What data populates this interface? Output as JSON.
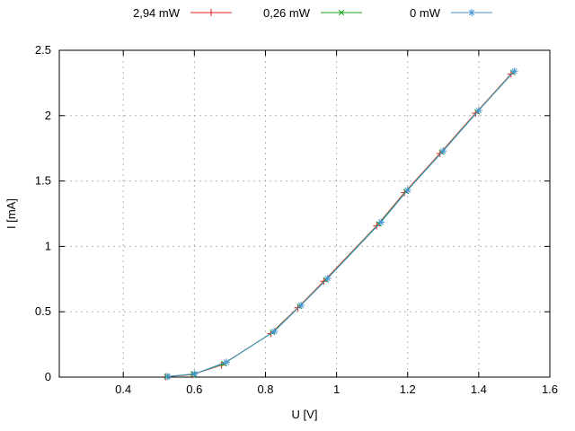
{
  "page": {
    "background": "#ffffff",
    "border_color": "#000000",
    "grid_color": "#b4b4b4"
  },
  "chart_data": {
    "type": "line",
    "title": "",
    "xlabel": "U [V]",
    "ylabel": "I [mA]",
    "xlim": [
      0.22,
      1.6
    ],
    "ylim": [
      0,
      2.5
    ],
    "xticks": [
      0.4,
      0.6,
      0.8,
      1.0,
      1.2,
      1.4,
      1.6
    ],
    "xtick_labels": [
      "0.4",
      "0.6",
      "0.8",
      "1",
      "1.2",
      "1.4",
      "1.6"
    ],
    "yticks": [
      0,
      0.5,
      1.0,
      1.5,
      2.0,
      2.5
    ],
    "ytick_labels": [
      "0",
      "0.5",
      "1",
      "1.5",
      "2",
      "2.5"
    ],
    "grid": true,
    "legend_position": "top-center-horizontal",
    "series": [
      {
        "name": "2,94 mW",
        "color": "#e02020",
        "marker": "plus",
        "x": [
          0.52,
          0.594,
          0.676,
          0.815,
          0.891,
          0.964,
          1.113,
          1.191,
          1.291,
          1.391,
          1.491
        ],
        "y": [
          0.003,
          0.019,
          0.092,
          0.334,
          0.531,
          0.733,
          1.158,
          1.411,
          1.711,
          2.019,
          2.319
        ]
      },
      {
        "name": "0,26 mW",
        "color": "#17a317",
        "marker": "cross",
        "x": [
          0.522,
          0.597,
          0.683,
          0.82,
          0.896,
          0.97,
          1.119,
          1.196,
          1.296,
          1.396,
          1.496
        ],
        "y": [
          0.004,
          0.022,
          0.103,
          0.342,
          0.541,
          0.744,
          1.172,
          1.421,
          1.721,
          2.03,
          2.33
        ]
      },
      {
        "name": "0 mW",
        "color": "#4596d1",
        "marker": "asterisk",
        "x": [
          0.525,
          0.6,
          0.69,
          0.825,
          0.9,
          0.975,
          1.125,
          1.2,
          1.3,
          1.4,
          1.5
        ],
        "y": [
          0.005,
          0.025,
          0.115,
          0.35,
          0.55,
          0.755,
          1.185,
          1.43,
          1.73,
          2.04,
          2.34
        ]
      }
    ]
  }
}
